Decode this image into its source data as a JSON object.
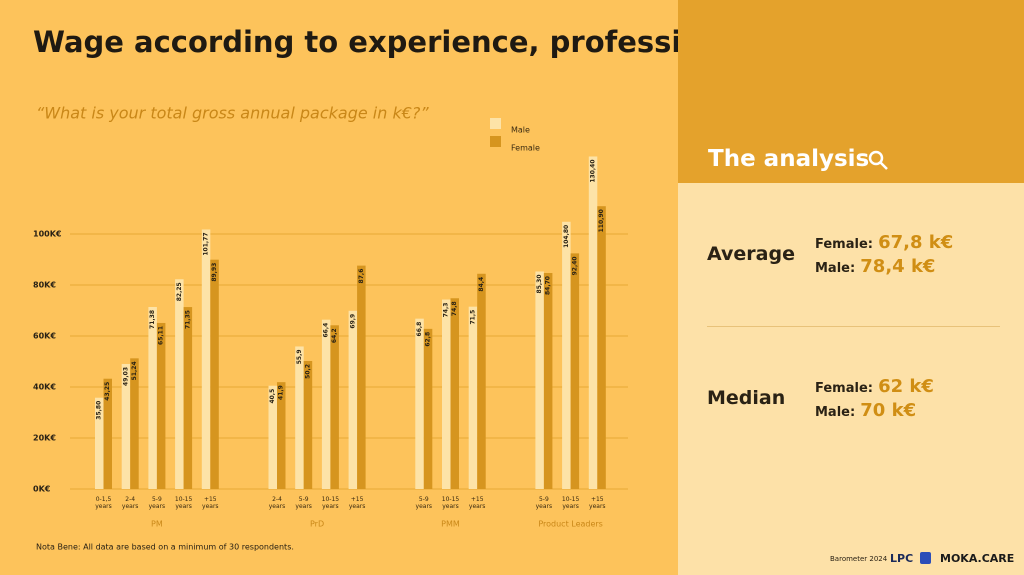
{
  "chart_data": {
    "type": "bar",
    "title": "Wage according to experience, profession and gender",
    "subtitle": "“What is your total gross annual package in k€?”",
    "groups": [
      {
        "name": "PM",
        "categories": [
          "0-1,5 years",
          "2-4 years",
          "5-9 years",
          "10-15 years",
          "+15 years"
        ]
      },
      {
        "name": "PrD",
        "categories": [
          "2-4 years",
          "5-9 years",
          "10-15 years",
          "+15 years"
        ]
      },
      {
        "name": "PMM",
        "categories": [
          "5-9 years",
          "10-15 years",
          "+15 years"
        ]
      },
      {
        "name": "Product Leaders",
        "categories": [
          "5-9 years",
          "10-15 years",
          "+15 years"
        ]
      }
    ],
    "series": [
      {
        "name": "Male",
        "color": "#fde3a7",
        "values": [
          35.8,
          49.03,
          71.38,
          82.25,
          101.77,
          40.5,
          55.9,
          66.4,
          69.9,
          66.8,
          74.3,
          71.5,
          85.3,
          104.8,
          130.4
        ],
        "value_labels": [
          "35,80",
          "49,03",
          "71,38",
          "82,25",
          "101,77",
          "40,5",
          "55,9",
          "66,4",
          "69,9",
          "66,8",
          "74,3",
          "71,5",
          "85,30",
          "104,80",
          "130,40"
        ]
      },
      {
        "name": "Female",
        "color": "#d6951f",
        "values": [
          43.25,
          51.24,
          65.11,
          71.35,
          89.93,
          41.9,
          50.2,
          64.2,
          87.6,
          62.8,
          74.8,
          84.4,
          84.7,
          92.4,
          110.9
        ],
        "value_labels": [
          "43,25",
          "51,24",
          "65,11",
          "71,35",
          "89,93",
          "41,9",
          "50,2",
          "64,2",
          "87,6",
          "62,8",
          "74,8",
          "84,4",
          "84,70",
          "92,40",
          "110,90"
        ]
      }
    ],
    "ylim": [
      0,
      140
    ],
    "yticks": [
      {
        "value": 0,
        "label": "0K€"
      },
      {
        "value": 20,
        "label": "20K€"
      },
      {
        "value": 40,
        "label": "40K€"
      },
      {
        "value": 60,
        "label": "60K€"
      },
      {
        "value": 80,
        "label": "80K€"
      },
      {
        "value": 100,
        "label": "100K€"
      }
    ],
    "grid": true,
    "note": "Nota Bene: All data are based on a minimum of 30 respondents."
  },
  "panel": {
    "title": "The analysis",
    "average": {
      "label": "Average",
      "female_label": "Female:",
      "female_value": "67,8 k€",
      "male_label": "Male:",
      "male_value": "78,4 k€"
    },
    "median": {
      "label": "Median",
      "female_label": "Female:",
      "female_value": "62 k€",
      "male_label": "Male:",
      "male_value": "70 k€"
    }
  },
  "footer": {
    "barometer": "Barometer 2024",
    "lpc": "LPC",
    "brand": "MOKA.CARE"
  }
}
